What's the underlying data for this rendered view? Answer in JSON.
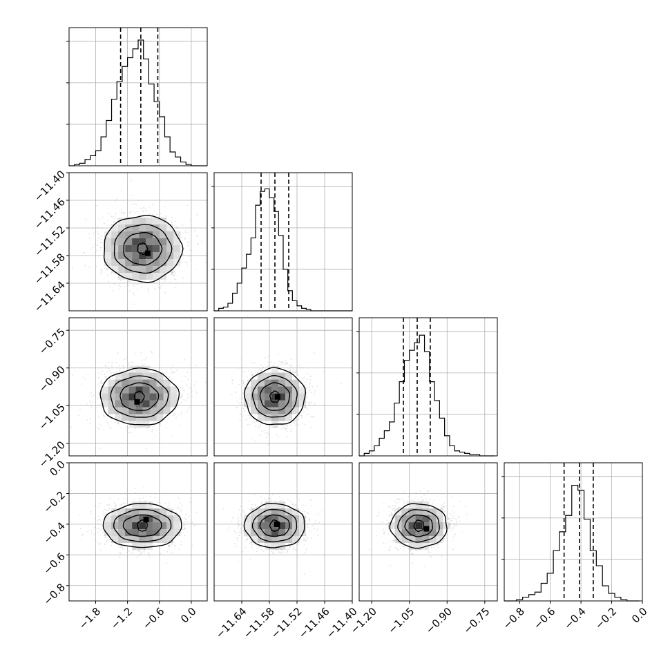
{
  "chart_data": {
    "type": "corner",
    "grid": true,
    "quantile_lines": "dashed",
    "histogram_panels": [
      {
        "param": 0,
        "range": [
          -2.3,
          0.3
        ],
        "max_count": 1,
        "quantiles": [
          -1.33,
          -0.95,
          -0.63
        ],
        "bin_edges": [
          -2.3,
          -2.2,
          -2.1,
          -2.0,
          -1.9,
          -1.8,
          -1.7,
          -1.6,
          -1.5,
          -1.4,
          -1.3,
          -1.2,
          -1.1,
          -1.0,
          -0.9,
          -0.8,
          -0.7,
          -0.6,
          -0.5,
          -0.4,
          -0.3,
          -0.2,
          -0.1,
          0.0,
          0.1,
          0.2,
          0.3
        ],
        "counts": [
          0.0,
          0.01,
          0.02,
          0.05,
          0.08,
          0.12,
          0.23,
          0.36,
          0.53,
          0.67,
          0.79,
          0.86,
          0.93,
          1.0,
          0.85,
          0.65,
          0.51,
          0.39,
          0.23,
          0.11,
          0.07,
          0.03,
          0.01,
          0.0,
          0.0,
          0.0
        ]
      },
      {
        "param": 1,
        "range": [
          -11.7,
          -11.4
        ],
        "max_count": 1,
        "quantiles": [
          -11.598,
          -11.568,
          -11.538
        ],
        "bin_edges": [
          -11.7,
          -11.69,
          -11.68,
          -11.67,
          -11.66,
          -11.65,
          -11.64,
          -11.63,
          -11.62,
          -11.61,
          -11.6,
          -11.59,
          -11.58,
          -11.57,
          -11.56,
          -11.55,
          -11.54,
          -11.53,
          -11.52,
          -11.51,
          -11.5,
          -11.49,
          -11.48,
          -11.47,
          -11.46,
          -11.45,
          -11.44,
          -11.43,
          -11.42,
          -11.41,
          -11.4
        ],
        "counts": [
          0.0,
          0.02,
          0.03,
          0.06,
          0.14,
          0.22,
          0.34,
          0.45,
          0.58,
          0.84,
          0.95,
          0.97,
          0.9,
          0.79,
          0.6,
          0.33,
          0.16,
          0.08,
          0.04,
          0.02,
          0.01,
          0.0,
          0.0,
          0.0,
          0.0,
          0.0,
          0.0,
          0.0,
          0.0,
          0.0
        ]
      },
      {
        "param": 2,
        "range": [
          -1.25,
          -0.7
        ],
        "max_count": 1,
        "quantiles": [
          -1.074,
          -1.019,
          -0.967
        ],
        "bin_edges": [
          -1.25,
          -1.23,
          -1.21,
          -1.19,
          -1.17,
          -1.15,
          -1.13,
          -1.11,
          -1.09,
          -1.07,
          -1.05,
          -1.03,
          -1.01,
          -0.99,
          -0.97,
          -0.95,
          -0.93,
          -0.91,
          -0.89,
          -0.87,
          -0.85,
          -0.83,
          -0.81,
          -0.79,
          -0.77,
          -0.75,
          -0.73,
          -0.71
        ],
        "counts": [
          0.0,
          0.02,
          0.04,
          0.08,
          0.14,
          0.2,
          0.27,
          0.42,
          0.59,
          0.76,
          0.84,
          0.9,
          0.96,
          0.83,
          0.59,
          0.44,
          0.3,
          0.16,
          0.08,
          0.04,
          0.03,
          0.02,
          0.01,
          0.01,
          0.0,
          0.0,
          0.0
        ]
      },
      {
        "param": 3,
        "range": [
          -0.9,
          0.0
        ],
        "max_count": 1,
        "quantiles": [
          -0.51,
          -0.41,
          -0.32
        ],
        "bin_edges": [
          -0.9,
          -0.86,
          -0.82,
          -0.78,
          -0.74,
          -0.7,
          -0.66,
          -0.62,
          -0.58,
          -0.54,
          -0.5,
          -0.46,
          -0.42,
          -0.38,
          -0.34,
          -0.3,
          -0.26,
          -0.22,
          -0.18,
          -0.14,
          -0.1,
          -0.06,
          -0.02
        ],
        "counts": [
          0.0,
          0.0,
          0.01,
          0.03,
          0.05,
          0.07,
          0.14,
          0.22,
          0.4,
          0.55,
          0.68,
          0.92,
          0.88,
          0.65,
          0.4,
          0.28,
          0.12,
          0.06,
          0.03,
          0.01,
          0.0,
          0.0
        ]
      }
    ],
    "axes": [
      {
        "param": 0,
        "range": [
          -2.3,
          0.3
        ],
        "tick_values": [
          -1.8,
          -1.2,
          -0.6,
          0.0
        ],
        "tick_labels": [
          "−1.8",
          "−1.2",
          "−0.6",
          "0.0"
        ]
      },
      {
        "param": 1,
        "range": [
          -11.7,
          -11.4
        ],
        "tick_values": [
          -11.64,
          -11.58,
          -11.52,
          -11.46,
          -11.4
        ],
        "tick_labels": [
          "−11.64",
          "−11.58",
          "−11.52",
          "−11.46",
          "−11.40"
        ]
      },
      {
        "param": 2,
        "range": [
          -1.25,
          -0.7
        ],
        "tick_values": [
          -1.2,
          -1.05,
          -0.9,
          -0.75
        ],
        "tick_labels": [
          "−1.20",
          "−1.05",
          "−0.90",
          "−0.75"
        ]
      },
      {
        "param": 3,
        "range": [
          -0.9,
          0.0
        ],
        "tick_values": [
          -0.8,
          -0.6,
          -0.4,
          -0.2,
          0.0
        ],
        "tick_labels": [
          "−0.8",
          "−0.6",
          "−0.4",
          "−0.2",
          "0.0"
        ]
      }
    ],
    "y_axis_ticks": [
      {
        "param": 1,
        "tick_values": [
          -11.64,
          -11.58,
          -11.52,
          -11.46,
          -11.4
        ],
        "tick_labels": [
          "−11.64",
          "−11.58",
          "−11.52",
          "−11.46",
          "−11.40"
        ]
      },
      {
        "param": 2,
        "tick_values": [
          -1.2,
          -1.05,
          -0.9,
          -0.75
        ],
        "tick_labels": [
          "−1.20",
          "−1.05",
          "−0.90",
          "−0.75"
        ]
      },
      {
        "param": 3,
        "tick_values": [
          -0.8,
          -0.6,
          -0.4,
          -0.2,
          0.0
        ],
        "tick_labels": [
          "−0.8",
          "−0.6",
          "−0.4",
          "−0.2",
          "0.0"
        ]
      }
    ],
    "density_panels": [
      {
        "x": 0,
        "y": 1,
        "center": [
          -0.92,
          -11.565
        ],
        "sigma": [
          0.36,
          0.035
        ],
        "mode": [
          -0.82,
          -11.575
        ]
      },
      {
        "x": 0,
        "y": 2,
        "center": [
          -0.98,
          -1.015
        ],
        "sigma": [
          0.36,
          0.055
        ],
        "mode": [
          -1.02,
          -1.035
        ]
      },
      {
        "x": 1,
        "y": 2,
        "center": [
          -11.568,
          -1.015
        ],
        "sigma": [
          0.032,
          0.055
        ],
        "mode": [
          -11.562,
          -1.015
        ]
      },
      {
        "x": 0,
        "y": 3,
        "center": [
          -0.92,
          -0.41
        ],
        "sigma": [
          0.36,
          0.07
        ],
        "mode": [
          -0.85,
          -0.37
        ]
      },
      {
        "x": 1,
        "y": 3,
        "center": [
          -11.568,
          -0.41
        ],
        "sigma": [
          0.032,
          0.07
        ],
        "mode": [
          -11.564,
          -0.4
        ]
      },
      {
        "x": 2,
        "y": 3,
        "center": [
          -1.012,
          -0.41
        ],
        "sigma": [
          0.055,
          0.07
        ],
        "mode": [
          -0.982,
          -0.43
        ]
      }
    ],
    "colors": {
      "line": "#000000",
      "grid": "#b0b0b0",
      "points": "#c8c8c8",
      "density": "#000000"
    }
  }
}
